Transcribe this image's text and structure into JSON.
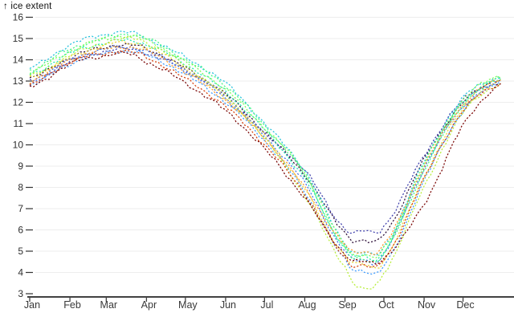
{
  "y_axis_label": "↑ ice extent",
  "axes": {
    "y_ticks": [
      16,
      15,
      14,
      13,
      12,
      11,
      10,
      9,
      8,
      7,
      6,
      5,
      4,
      3
    ],
    "x_tick_labels": [
      "Jan",
      "Feb",
      "Mar",
      "Apr",
      "May",
      "Jun",
      "Jul",
      "Aug",
      "Sep",
      "Oct",
      "Nov",
      "Dec"
    ]
  },
  "colors": {
    "grid": "#ededed",
    "axis_line": "#424242",
    "tick_text": "#2f2f2f",
    "label_text": "#111111"
  },
  "chart_data": {
    "type": "line",
    "title": "",
    "ylabel": "ice extent",
    "xlabel": "",
    "ylim": [
      3,
      16.4
    ],
    "x_unit": "day_of_year",
    "x_tick_days": [
      1,
      32,
      60,
      91,
      121,
      152,
      182,
      213,
      244,
      274,
      305,
      335
    ],
    "x_tick_labels": [
      "Jan",
      "Feb",
      "Mar",
      "Apr",
      "May",
      "Jun",
      "Jul",
      "Aug",
      "Sep",
      "Oct",
      "Nov",
      "Dec"
    ],
    "grid": true,
    "legend": "none",
    "style": "dotted multi-year daily lines",
    "control_days": [
      1,
      32,
      60,
      75,
      91,
      121,
      152,
      182,
      213,
      244,
      258,
      274,
      305,
      335,
      365
    ],
    "series": [
      {
        "name": "dark-navy",
        "color": "#30123b",
        "values": [
          13.1,
          14.1,
          14.6,
          14.7,
          14.5,
          13.6,
          12.4,
          10.6,
          8.6,
          5.9,
          5.5,
          5.8,
          9.3,
          12.0,
          13.1
        ]
      },
      {
        "name": "navy-blue",
        "color": "#4040ac",
        "values": [
          13.0,
          13.9,
          14.4,
          14.5,
          14.3,
          13.5,
          12.3,
          10.5,
          8.8,
          6.1,
          5.95,
          6.2,
          9.5,
          12.1,
          13.0
        ]
      },
      {
        "name": "blue",
        "color": "#4472e7",
        "values": [
          12.9,
          14.0,
          14.5,
          14.6,
          14.4,
          13.5,
          12.2,
          10.4,
          8.2,
          5.0,
          4.6,
          4.9,
          8.9,
          11.8,
          12.9
        ]
      },
      {
        "name": "light-blue",
        "color": "#3e9bfe",
        "values": [
          12.8,
          13.8,
          14.3,
          14.4,
          14.2,
          13.3,
          12.0,
          10.2,
          7.8,
          4.6,
          4.1,
          4.3,
          8.3,
          11.6,
          13.0
        ]
      },
      {
        "name": "cyan",
        "color": "#25c2dd",
        "values": [
          13.6,
          14.7,
          15.2,
          15.3,
          15.0,
          14.1,
          12.9,
          11.0,
          8.8,
          5.4,
          4.95,
          5.2,
          9.2,
          12.2,
          13.2
        ]
      },
      {
        "name": "teal",
        "color": "#1fe7af",
        "values": [
          13.3,
          14.3,
          14.8,
          14.9,
          14.7,
          13.8,
          12.5,
          10.7,
          8.4,
          5.2,
          4.75,
          5.0,
          9.0,
          12.0,
          13.1
        ]
      },
      {
        "name": "green",
        "color": "#46f884",
        "values": [
          13.5,
          14.5,
          15.0,
          15.2,
          15.0,
          14.0,
          12.8,
          10.9,
          8.6,
          5.1,
          4.65,
          4.9,
          8.8,
          11.9,
          13.2
        ]
      },
      {
        "name": "light-green",
        "color": "#78fb55",
        "values": [
          13.4,
          14.4,
          15.0,
          15.1,
          14.9,
          13.9,
          12.6,
          10.8,
          8.7,
          5.3,
          4.85,
          5.1,
          9.1,
          12.1,
          13.3
        ]
      },
      {
        "name": "yellow-green",
        "color": "#b8ee3c",
        "values": [
          13.2,
          14.2,
          14.8,
          15.0,
          14.8,
          13.7,
          12.3,
          10.3,
          7.6,
          4.3,
          3.2,
          4.0,
          8.0,
          11.5,
          12.9
        ]
      },
      {
        "name": "yellow",
        "color": "#e8d436",
        "values": [
          13.2,
          14.1,
          14.7,
          14.8,
          14.6,
          13.6,
          12.2,
          10.4,
          7.9,
          4.8,
          4.4,
          4.6,
          8.5,
          11.7,
          13.0
        ]
      },
      {
        "name": "orange",
        "color": "#fe9b2d",
        "values": [
          13.0,
          14.0,
          14.5,
          14.6,
          14.4,
          13.4,
          12.1,
          10.3,
          8.0,
          5.3,
          5.0,
          5.3,
          9.0,
          11.9,
          13.1
        ]
      },
      {
        "name": "red",
        "color": "#d5410d",
        "values": [
          12.8,
          13.9,
          14.3,
          14.4,
          14.1,
          13.1,
          11.8,
          10.0,
          7.7,
          4.7,
          4.35,
          4.6,
          8.4,
          11.6,
          12.9
        ]
      },
      {
        "name": "dark-red",
        "color": "#7a0403",
        "values": [
          12.7,
          13.8,
          14.2,
          14.3,
          13.9,
          12.9,
          11.6,
          9.8,
          7.5,
          4.9,
          4.5,
          4.7,
          7.2,
          10.9,
          12.9
        ]
      }
    ]
  }
}
